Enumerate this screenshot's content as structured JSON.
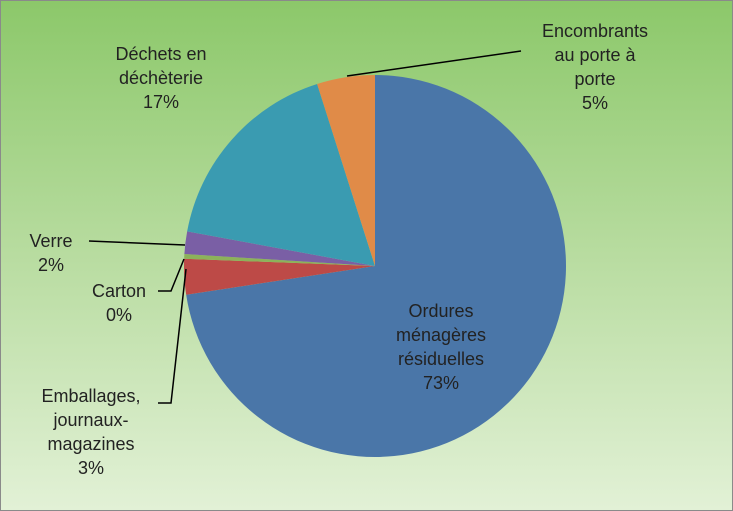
{
  "chart_data": {
    "type": "pie",
    "categories": [
      "Ordures ménagères résiduelles",
      "Emballages, journaux-magazines",
      "Carton",
      "Verre",
      "Déchets en déchèterie",
      "Encombrants au porte à porte"
    ],
    "values": [
      72.6,
      3.0,
      0.4,
      1.9,
      17.2,
      4.9
    ],
    "value_labels": [
      "73%",
      "3%",
      "0%",
      "2%",
      "17%",
      "5%"
    ],
    "colors": [
      "#4a76a8",
      "#bd4a47",
      "#8cb25a",
      "#7a5fa5",
      "#3a9bb1",
      "#e08b48"
    ]
  }
}
